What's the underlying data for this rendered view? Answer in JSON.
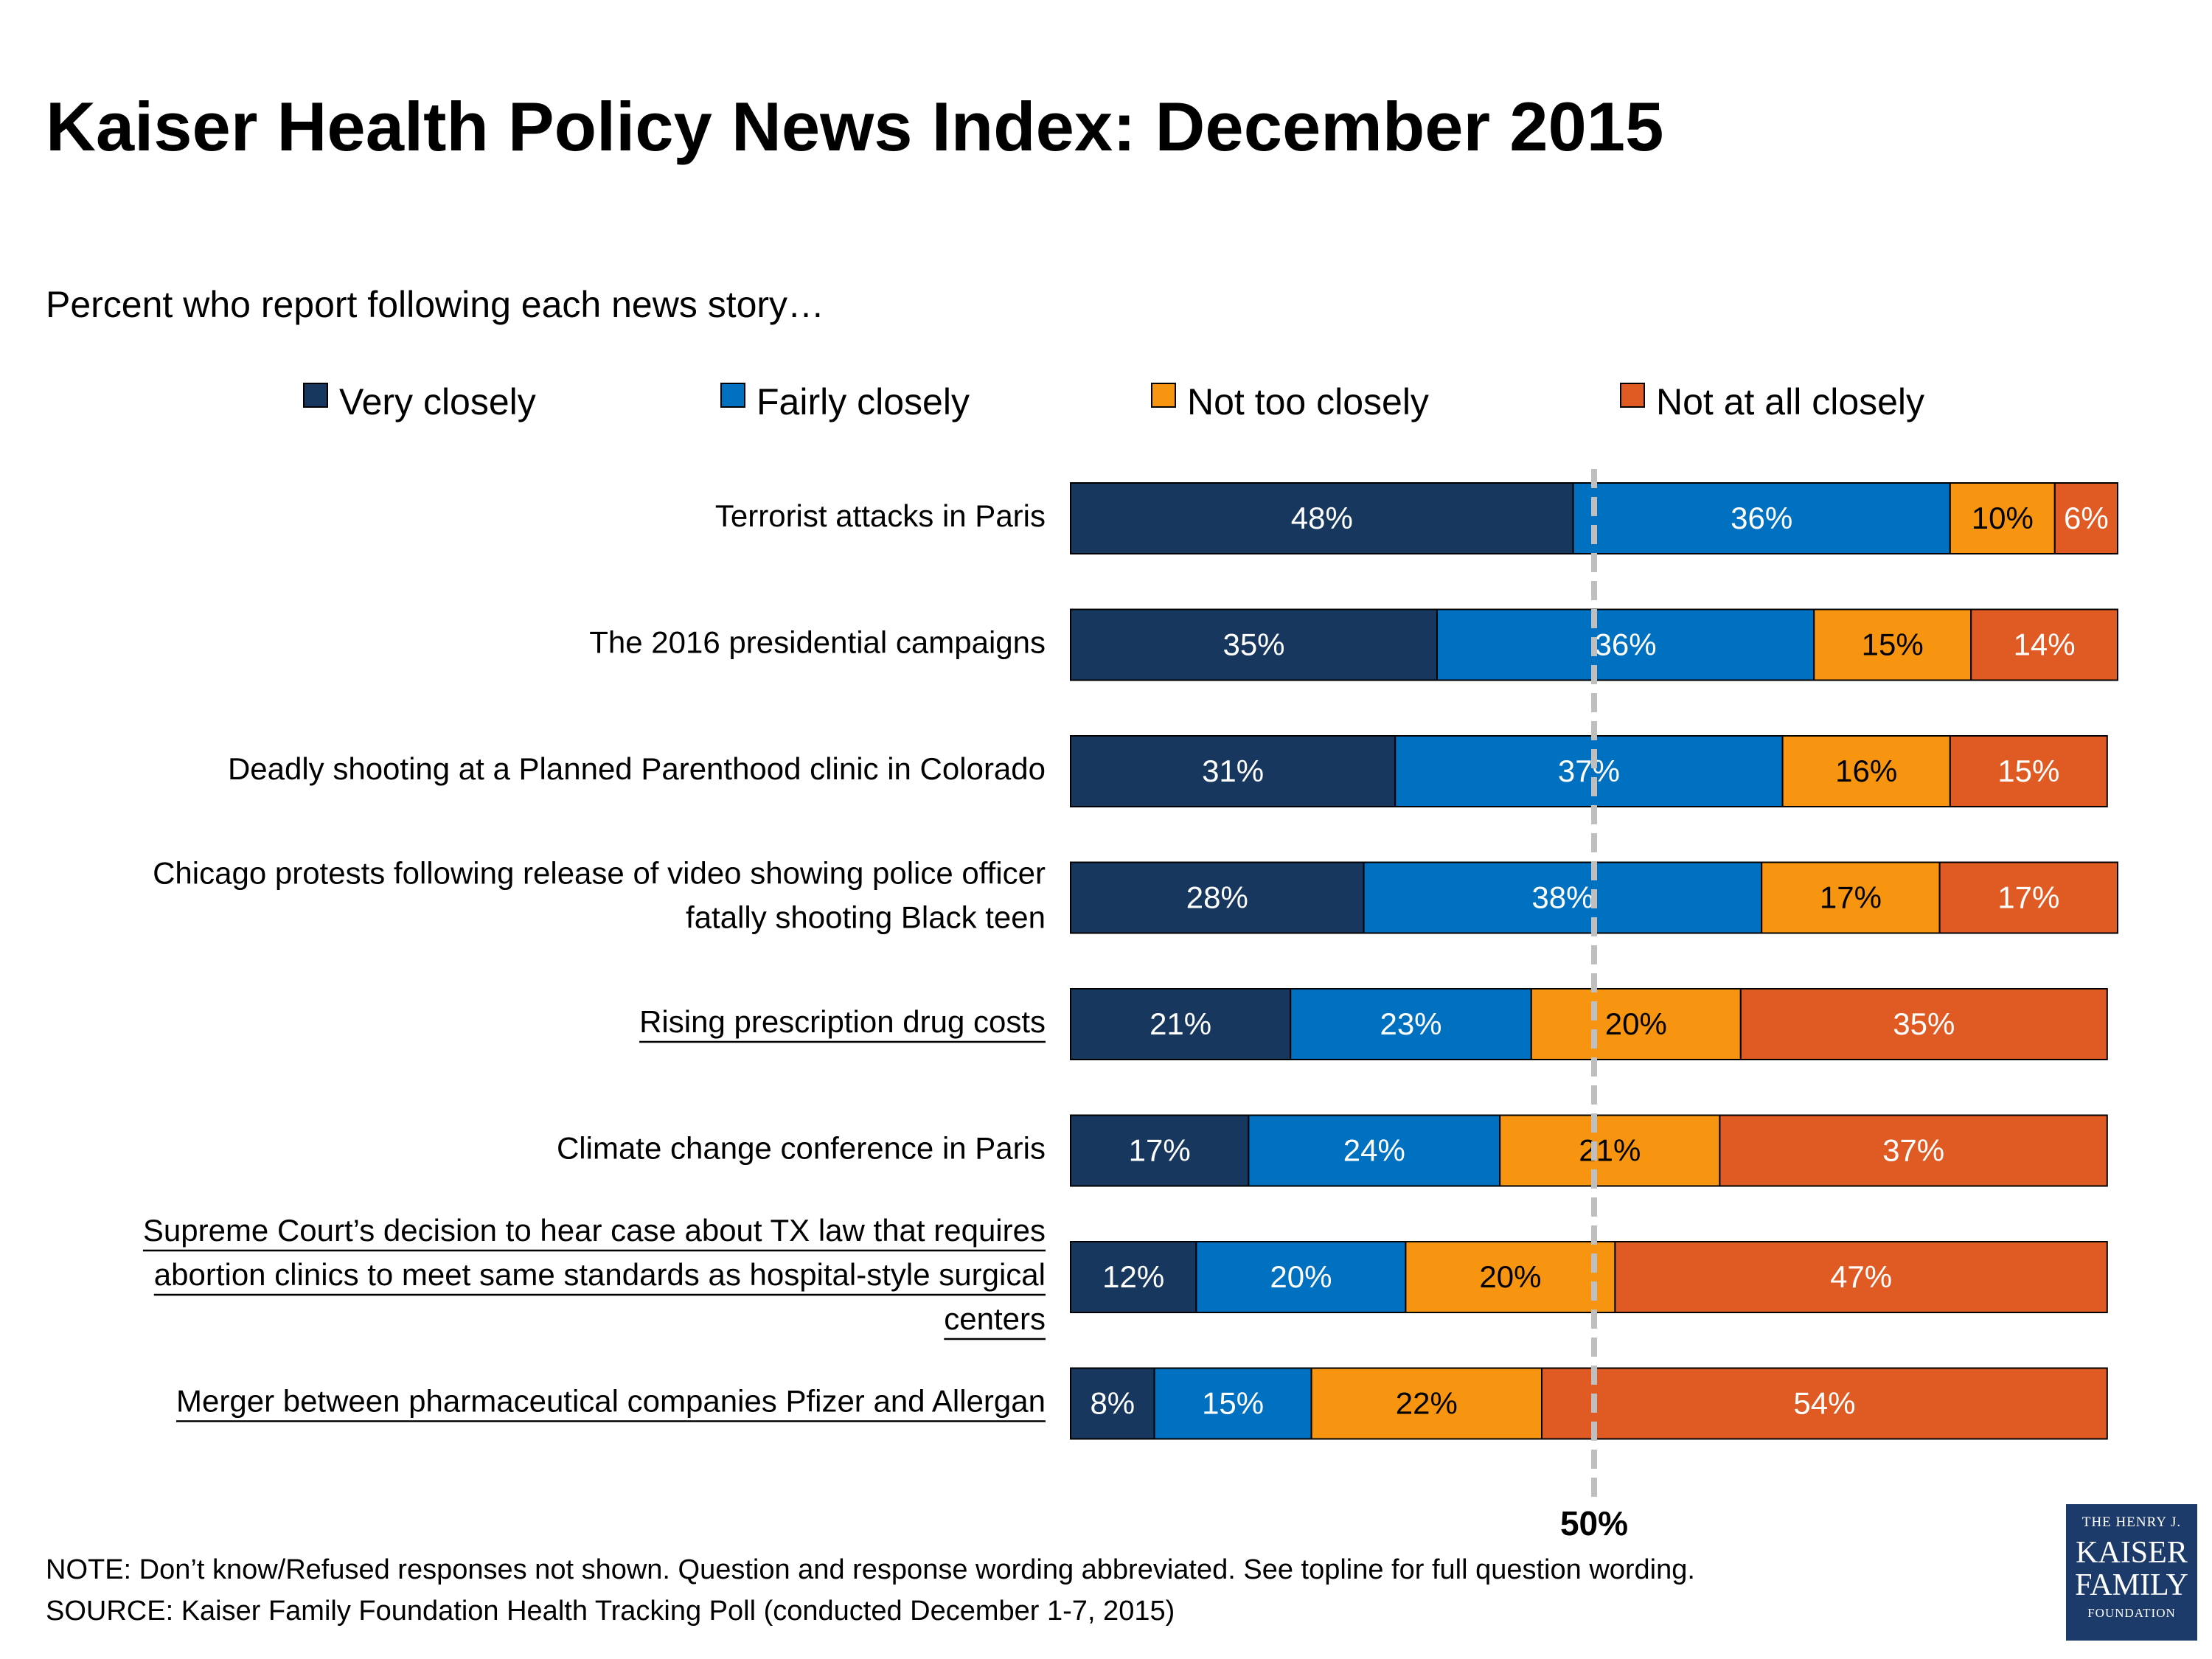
{
  "title": "Kaiser Health Policy News Index: December 2015",
  "subtitle": "Percent who report following each news story…",
  "notes": {
    "note": "NOTE: Don’t know/Refused responses not shown. Question and response wording abbreviated.  See topline for full question wording.",
    "source": "SOURCE: Kaiser Family Foundation Health Tracking Poll (conducted December 1-7, 2015)"
  },
  "logo": {
    "line1": "THE HENRY J.",
    "line2": "KAISER",
    "line3": "FAMILY",
    "line4": "FOUNDATION"
  },
  "chart_data": {
    "type": "bar",
    "orientation": "horizontal",
    "stacked": true,
    "categories": [
      "Terrorist attacks in Paris",
      "The 2016 presidential campaigns",
      "Deadly shooting at a Planned Parenthood clinic in Colorado",
      "Chicago protests following release of video showing police officer fatally shooting Black teen",
      "Rising prescription drug costs",
      "Climate change conference in Paris",
      "Supreme Court’s decision to hear case about TX law that requires abortion clinics to meet same standards as hospital-style surgical centers",
      "Merger between pharmaceutical companies Pfizer and Allergan"
    ],
    "category_lines": [
      [
        "Terrorist attacks in Paris"
      ],
      [
        "The 2016 presidential campaigns"
      ],
      [
        "Deadly shooting at a Planned Parenthood clinic in Colorado"
      ],
      [
        "Chicago protests following release of video showing police officer",
        "fatally shooting Black teen"
      ],
      [
        "Rising prescription drug costs"
      ],
      [
        "Climate change conference in Paris"
      ],
      [
        "Supreme Court’s decision to hear case about TX law that requires",
        "abortion clinics to meet same standards as hospital-style surgical",
        "centers"
      ],
      [
        "Merger between pharmaceutical companies Pfizer and Allergan"
      ]
    ],
    "underlined": [
      false,
      false,
      false,
      false,
      true,
      false,
      true,
      true
    ],
    "series": [
      {
        "name": "Very closely",
        "color": "#17375e",
        "values": [
          48,
          35,
          31,
          28,
          21,
          17,
          12,
          8
        ]
      },
      {
        "name": "Fairly closely",
        "color": "#0070c0",
        "values": [
          36,
          36,
          37,
          38,
          23,
          24,
          20,
          15
        ]
      },
      {
        "name": "Not too closely",
        "color": "#f79410",
        "values": [
          10,
          15,
          16,
          17,
          20,
          21,
          20,
          22
        ]
      },
      {
        "name": "Not at all closely",
        "color": "#e05a24",
        "values": [
          6,
          14,
          15,
          17,
          35,
          37,
          47,
          54
        ]
      }
    ],
    "value_suffix": "%",
    "xlim": [
      0,
      100
    ],
    "reference_line": {
      "value": 50,
      "label": "50%",
      "style": "dashed",
      "color": "#bfbfbf"
    },
    "legend_position": "top",
    "grid": false
  }
}
